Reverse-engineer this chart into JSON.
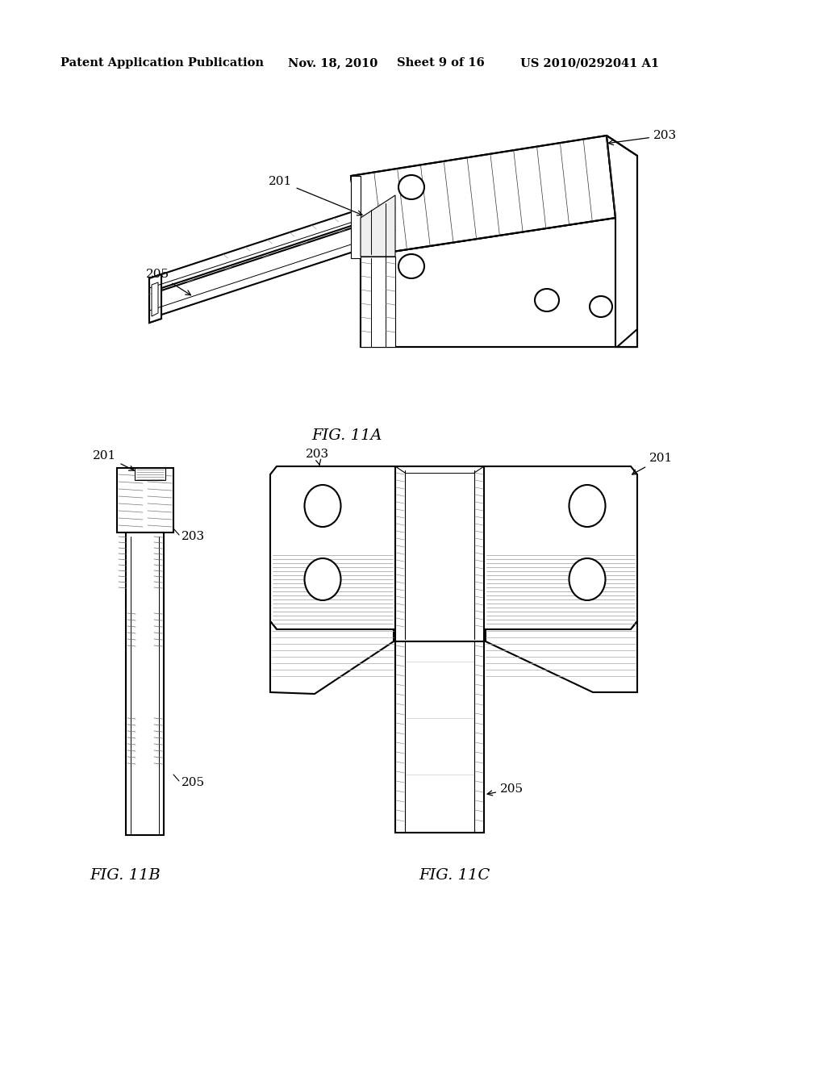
{
  "background_color": "#ffffff",
  "header_text": "Patent Application Publication",
  "header_date": "Nov. 18, 2010",
  "header_sheet": "Sheet 9 of 16",
  "header_patent": "US 2010/0292041 A1",
  "fig_a_label": "FIG. 11A",
  "fig_b_label": "FIG. 11B",
  "fig_c_label": "FIG. 11C",
  "label_201": "201",
  "label_203": "203",
  "label_205": "205",
  "line_color": "#000000",
  "line_width": 1.5,
  "header_fontsize": 10.5,
  "label_fontsize": 11,
  "fig_label_fontsize": 14
}
